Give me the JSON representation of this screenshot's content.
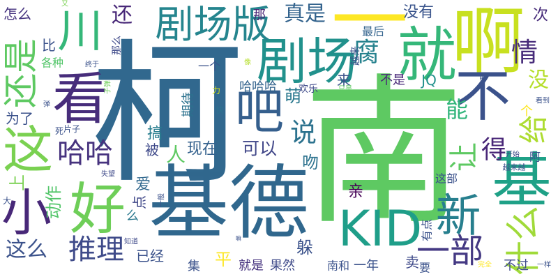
{
  "words": [
    {
      "text": "柯",
      "color": "#31688e"
    },
    {
      "text": "南",
      "color": "#5ec962"
    },
    {
      "text": "基德",
      "color": "#30678d"
    },
    {
      "text": "啊",
      "color": "#c8e020"
    },
    {
      "text": "就",
      "color": "#35b779"
    },
    {
      "text": "一",
      "color": "#fde725"
    },
    {
      "text": "剧场",
      "color": "#21918c"
    },
    {
      "text": "剧场版",
      "color": "#25858e"
    },
    {
      "text": "看",
      "color": "#472d7b"
    },
    {
      "text": "还是",
      "color": "#5ec962"
    },
    {
      "text": "川",
      "color": "#35b779"
    },
    {
      "text": "这",
      "color": "#7ad151"
    },
    {
      "text": "小",
      "color": "#482878"
    },
    {
      "text": "好",
      "color": "#6ece58"
    },
    {
      "text": "吧",
      "color": "#355f8d"
    },
    {
      "text": "不",
      "color": "#3b528b"
    },
    {
      "text": "基",
      "color": "#1fa187"
    },
    {
      "text": "KID",
      "color": "#1f9e89"
    },
    {
      "text": "新",
      "color": "#277f8e"
    },
    {
      "text": "什么",
      "color": "#a0da39"
    },
    {
      "text": "一部",
      "color": "#443983"
    },
    {
      "text": "哈哈",
      "color": "#46327e"
    },
    {
      "text": "推理",
      "color": "#3e4a89"
    },
    {
      "text": "这么",
      "color": "#3b528b"
    },
    {
      "text": "说",
      "color": "#2c728e"
    },
    {
      "text": "腐",
      "color": "#26828e"
    },
    {
      "text": "真是",
      "color": "#33638d"
    },
    {
      "text": "情",
      "color": "#472c7a"
    },
    {
      "text": "没有",
      "color": "#3a548c"
    },
    {
      "text": "次",
      "color": "#472c7a"
    },
    {
      "text": "没",
      "color": "#b5de2b"
    },
    {
      "text": "能",
      "color": "#31b57b"
    },
    {
      "text": "给",
      "color": "#addc30"
    },
    {
      "text": "让",
      "color": "#5ec962"
    },
    {
      "text": "得",
      "color": "#482677"
    },
    {
      "text": "可以",
      "color": "#404688"
    },
    {
      "text": "吻",
      "color": "#2c728e"
    },
    {
      "text": "人",
      "color": "#5ec962"
    },
    {
      "text": "现在",
      "color": "#34618d"
    },
    {
      "text": "搞",
      "color": "#287d8e"
    },
    {
      "text": "被",
      "color": "#3e4989"
    },
    {
      "text": "爱",
      "color": "#31688e"
    },
    {
      "text": "点",
      "color": "#3f4788"
    },
    {
      "text": "么",
      "color": "#2a788e"
    },
    {
      "text": "动作",
      "color": "#52c569"
    },
    {
      "text": "上",
      "color": "#7ad151"
    },
    {
      "text": "大",
      "color": "#3b528b"
    },
    {
      "text": "为了",
      "color": "#3b528b"
    },
    {
      "text": "怎么",
      "color": "#46337f"
    },
    {
      "text": "还",
      "color": "#482878"
    },
    {
      "text": "比",
      "color": "#3b528b"
    },
    {
      "text": "各种",
      "color": "#52c569"
    },
    {
      "text": "那么",
      "color": "#3e4989"
    },
    {
      "text": "那",
      "color": "#482475"
    },
    {
      "text": "最后",
      "color": "#33638d"
    },
    {
      "text": "亲",
      "color": "#440154"
    },
    {
      "text": "萌",
      "color": "#2a788e"
    },
    {
      "text": "哈哈哈",
      "color": "#33638d"
    },
    {
      "text": "欢乐",
      "color": "#3e4989"
    },
    {
      "text": "来",
      "color": "#3b528b"
    },
    {
      "text": "不是",
      "color": "#482878"
    },
    {
      "text": "JQ",
      "color": "#21918c"
    },
    {
      "text": "平",
      "color": "#fde725"
    },
    {
      "text": "集",
      "color": "#3b528b"
    },
    {
      "text": "已经",
      "color": "#3b528b"
    },
    {
      "text": "就是",
      "color": "#46337f"
    },
    {
      "text": "果然",
      "color": "#3e4a89"
    },
    {
      "text": "躲",
      "color": "#3b528b"
    },
    {
      "text": "南和",
      "color": "#3b528b"
    },
    {
      "text": "一年",
      "color": "#3b528b"
    },
    {
      "text": "卖",
      "color": "#3e4989"
    },
    {
      "text": "要",
      "color": "#3b528b"
    },
    {
      "text": "不过",
      "color": "#3e4989"
    },
    {
      "text": "个",
      "color": "#fde725"
    },
    {
      "text": "阿",
      "color": "#3b528b"
    },
    {
      "text": "开始",
      "color": "#3e4989"
    },
    {
      "text": "越来越",
      "color": "#3b528b"
    },
    {
      "text": "这部",
      "color": "#3b528b"
    },
    {
      "text": "有点",
      "color": "#3b528b"
    },
    {
      "text": "期待",
      "color": "#2c728e"
    },
    {
      "text": "一个",
      "color": "#3b528b"
    },
    {
      "text": "片子",
      "color": "#3b528b"
    },
    {
      "text": "死",
      "color": "#3b528b"
    },
    {
      "text": "快",
      "color": "#2c728e"
    },
    {
      "text": "力",
      "color": "#d8e219"
    },
    {
      "text": "像",
      "color": "#b5de2b"
    },
    {
      "text": "终于",
      "color": "#3b528b"
    },
    {
      "text": "子弹",
      "color": "#6ece58"
    },
    {
      "text": "只是",
      "color": "#5ec962"
    },
    {
      "text": "越来",
      "color": "#3b528b"
    },
    {
      "text": "前",
      "color": "#3b528b"
    },
    {
      "text": "看到",
      "color": "#3b528b"
    },
    {
      "text": "失望",
      "color": "#3e4989"
    },
    {
      "text": "一般",
      "color": "#3b528b"
    },
    {
      "text": "知道",
      "color": "#3e4989"
    },
    {
      "text": "嘛",
      "color": "#3b528b"
    },
    {
      "text": "完全",
      "color": "#fde725"
    },
    {
      "text": "一样",
      "color": "#3b528b"
    },
    {
      "text": "又",
      "color": "#7ad151"
    },
    {
      "text": "弹",
      "color": "#3b528b"
    }
  ]
}
